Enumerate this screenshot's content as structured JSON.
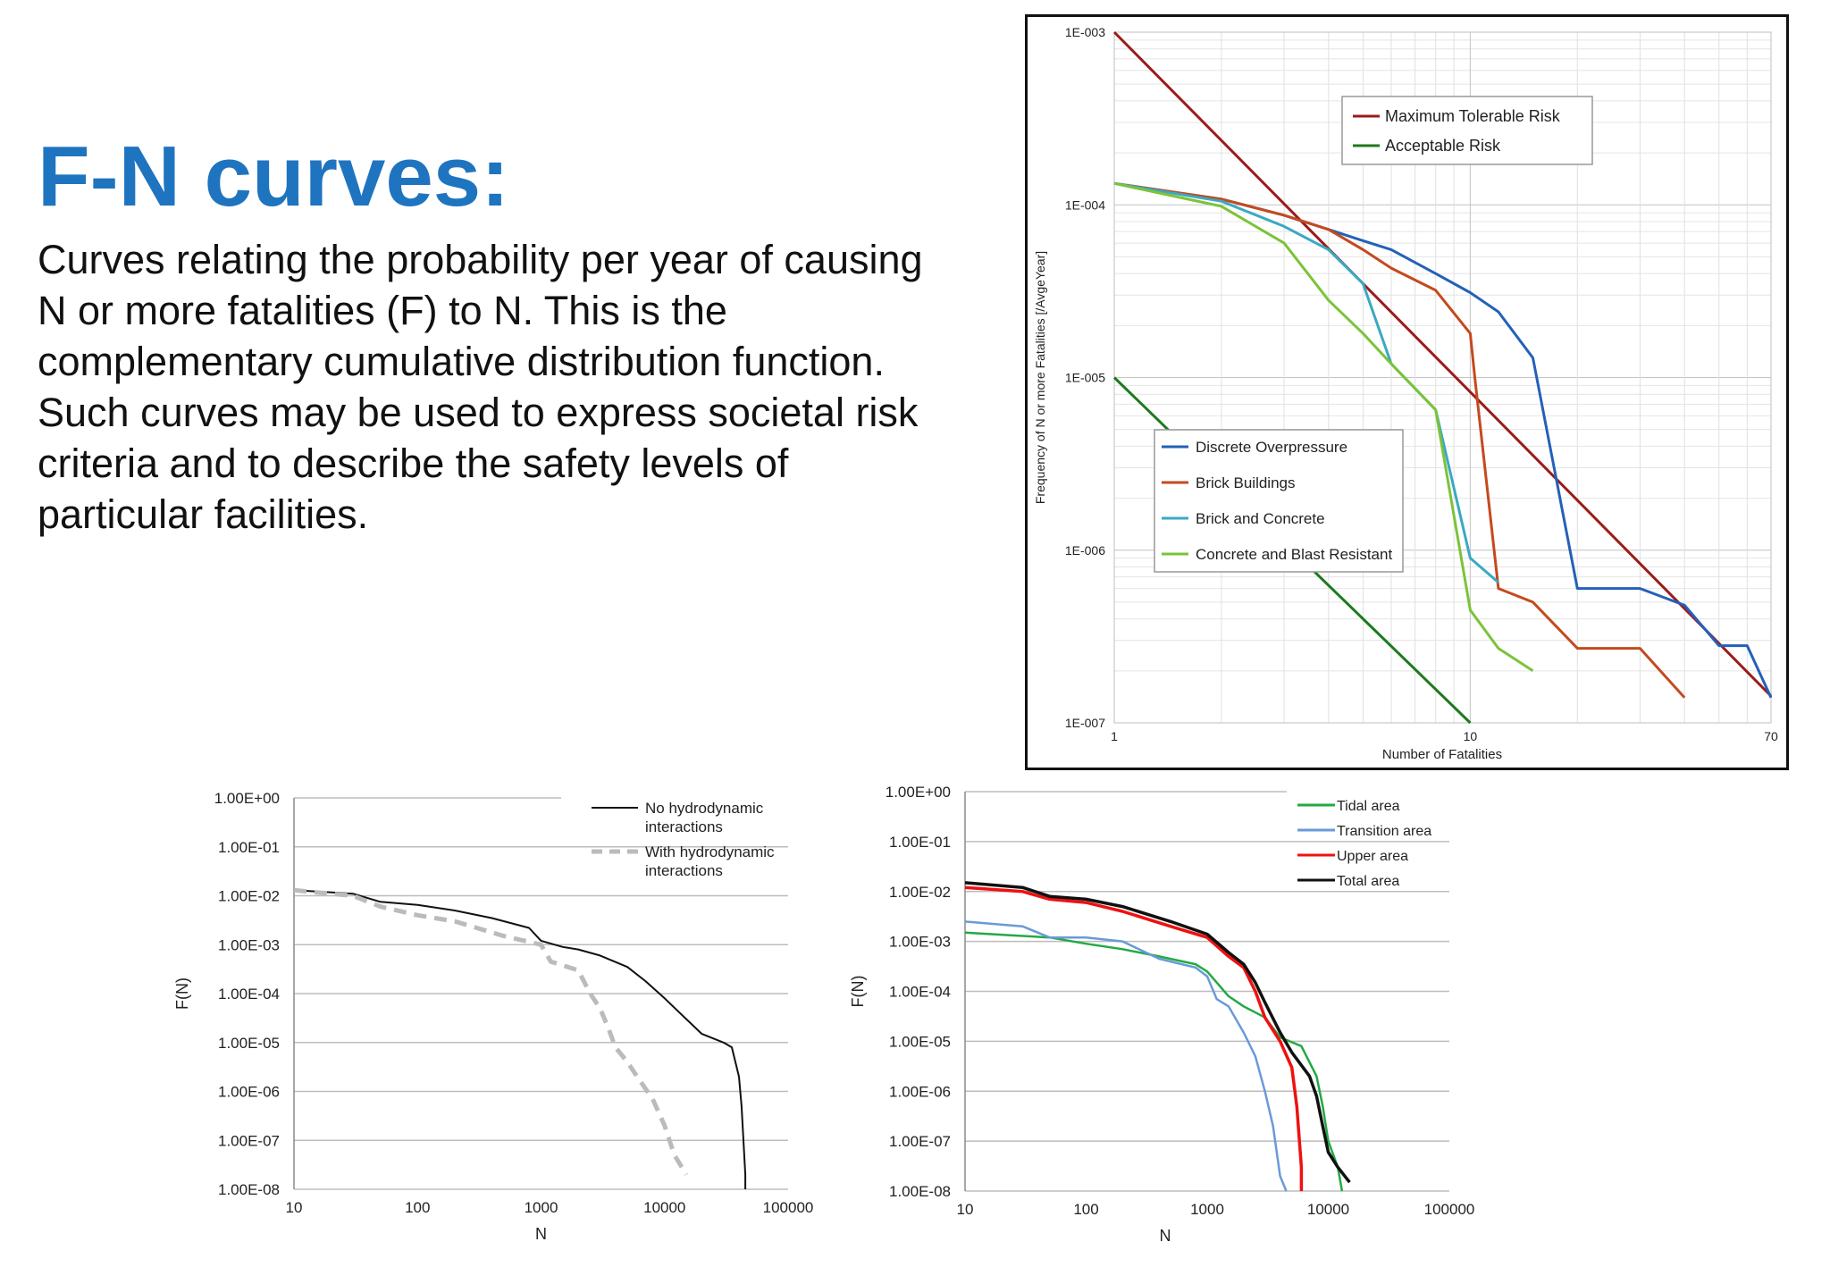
{
  "slide": {
    "title": "F-N curves:",
    "description_lines": [
      "Curves relating the probability per year of causing",
      "N or more fatalities (F) to N. This is the",
      "complementary cumulative distribution function.",
      "Such curves may be used to express societal risk",
      "criteria and to describe the safety levels of",
      "particular facilities."
    ]
  },
  "chart_data": [
    {
      "type": "line",
      "xlabel": "Number of Fatalities",
      "ylabel": "Frequency of N or more Fatalities [/AvgeYear]",
      "x_scale": "log",
      "y_scale": "log",
      "xlim": [
        1,
        70
      ],
      "ylim": [
        1e-07,
        0.001
      ],
      "x_ticks": [
        {
          "v": 1,
          "label": "1"
        },
        {
          "v": 10,
          "label": "10"
        },
        {
          "v": 70,
          "label": "70"
        }
      ],
      "y_ticks": [
        {
          "v": 0.001,
          "label": "1E-003"
        },
        {
          "v": 0.0001,
          "label": "1E-004"
        },
        {
          "v": 1e-05,
          "label": "1E-005"
        },
        {
          "v": 1e-06,
          "label": "1E-006"
        },
        {
          "v": 1e-07,
          "label": "1E-007"
        }
      ],
      "grid": true,
      "legends": [
        {
          "placement": "top-right",
          "entries": [
            "Maximum Tolerable Risk",
            "Acceptable Risk"
          ]
        },
        {
          "placement": "center-left",
          "entries": [
            "Discrete Overpressure",
            "Brick Buildings",
            "Brick and Concrete",
            "Concrete and Blast Resistant"
          ]
        }
      ],
      "series": [
        {
          "name": "Maximum Tolerable Risk",
          "color": "#9b1b1b",
          "x": [
            1,
            70
          ],
          "y": [
            0.001,
            1.43e-07
          ]
        },
        {
          "name": "Acceptable Risk",
          "color": "#1d7a1d",
          "x": [
            1,
            10
          ],
          "y": [
            1e-05,
            1e-07
          ]
        },
        {
          "name": "Discrete Overpressure",
          "color": "#2460b8",
          "x": [
            1,
            2,
            3,
            4,
            5,
            6,
            8,
            10,
            12,
            15,
            20,
            25,
            30,
            40,
            50,
            60,
            70
          ],
          "y": [
            0.000133,
            0.000108,
            8.7e-05,
            7.2e-05,
            6.2e-05,
            5.5e-05,
            4e-05,
            3.1e-05,
            2.4e-05,
            1.3e-05,
            6e-07,
            6e-07,
            6e-07,
            4.8e-07,
            2.8e-07,
            2.8e-07,
            1.4e-07
          ]
        },
        {
          "name": "Brick Buildings",
          "color": "#c44a1e",
          "x": [
            1,
            2,
            3,
            4,
            5,
            6,
            8,
            10,
            10.3,
            12,
            15,
            20,
            25,
            30,
            40
          ],
          "y": [
            0.000133,
            0.000108,
            8.7e-05,
            7.2e-05,
            5.5e-05,
            4.3e-05,
            3.2e-05,
            1.8e-05,
            1e-05,
            6e-07,
            5e-07,
            2.7e-07,
            2.7e-07,
            2.7e-07,
            1.4e-07
          ]
        },
        {
          "name": "Brick and Concrete",
          "color": "#3aa9c3",
          "x": [
            1,
            2,
            3,
            4,
            5,
            6,
            8,
            10,
            12
          ],
          "y": [
            0.000133,
            0.000105,
            7.5e-05,
            5.5e-05,
            3.5e-05,
            1.2e-05,
            6.5e-06,
            9e-07,
            6.5e-07
          ]
        },
        {
          "name": "Concrete and Blast Resistant",
          "color": "#7cc33a",
          "x": [
            1,
            2,
            3,
            4,
            5,
            6,
            8,
            10,
            12,
            15
          ],
          "y": [
            0.000133,
            9.8e-05,
            6e-05,
            2.8e-05,
            1.8e-05,
            1.2e-05,
            6.5e-06,
            4.5e-07,
            2.7e-07,
            2e-07
          ]
        }
      ]
    },
    {
      "type": "line",
      "xlabel": "N",
      "ylabel": "F(N)",
      "x_scale": "log",
      "y_scale": "log",
      "xlim": [
        10,
        100000
      ],
      "ylim": [
        1e-08,
        1
      ],
      "x_ticks": [
        {
          "v": 10,
          "label": "10"
        },
        {
          "v": 100,
          "label": "100"
        },
        {
          "v": 1000,
          "label": "1000"
        },
        {
          "v": 10000,
          "label": "10000"
        },
        {
          "v": 100000,
          "label": "100000"
        }
      ],
      "y_ticks": [
        {
          "v": 1,
          "label": "1.00E+00"
        },
        {
          "v": 0.1,
          "label": "1.00E-01"
        },
        {
          "v": 0.01,
          "label": "1.00E-02"
        },
        {
          "v": 0.001,
          "label": "1.00E-03"
        },
        {
          "v": 0.0001,
          "label": "1.00E-04"
        },
        {
          "v": 1e-05,
          "label": "1.00E-05"
        },
        {
          "v": 1e-06,
          "label": "1.00E-06"
        },
        {
          "v": 1e-07,
          "label": "1.00E-07"
        },
        {
          "v": 1e-08,
          "label": "1.00E-08"
        }
      ],
      "grid": "horizontal",
      "legend": {
        "placement": "top-right",
        "entries": [
          "No hydrodynamic interactions",
          "With hydrodynamic interactions"
        ]
      },
      "series": [
        {
          "name": "No hydrodynamic interactions",
          "color": "#111111",
          "dash": "solid",
          "x": [
            10,
            30,
            50,
            100,
            200,
            400,
            800,
            1000,
            1500,
            2000,
            3000,
            5000,
            7000,
            10000,
            15000,
            20000,
            30000,
            35000,
            40000,
            42000,
            45000,
            45000
          ],
          "y": [
            0.013,
            0.011,
            0.0075,
            0.0065,
            0.005,
            0.0035,
            0.0022,
            0.0012,
            0.0009,
            0.0008,
            0.0006,
            0.00035,
            0.00018,
            8e-05,
            3e-05,
            1.5e-05,
            1e-05,
            8e-06,
            2e-06,
            5e-07,
            2e-08,
            1e-08
          ]
        },
        {
          "name": "With hydrodynamic interactions",
          "color": "#bbbbbb",
          "dash": "dashed",
          "x": [
            10,
            30,
            50,
            100,
            200,
            500,
            1000,
            1200,
            2000,
            2500,
            3000,
            3500,
            4000,
            5000,
            6000,
            8000,
            10000,
            12000,
            15000
          ],
          "y": [
            0.013,
            0.01,
            0.006,
            0.004,
            0.003,
            0.0015,
            0.001,
            0.00045,
            0.0003,
            0.0001,
            5e-05,
            2e-05,
            8e-06,
            4e-06,
            2e-06,
            7e-07,
            2e-07,
            5e-08,
            2e-08
          ]
        }
      ]
    },
    {
      "type": "line",
      "xlabel": "N",
      "ylabel": "F(N)",
      "x_scale": "log",
      "y_scale": "log",
      "xlim": [
        10,
        100000
      ],
      "ylim": [
        1e-08,
        1
      ],
      "x_ticks": [
        {
          "v": 10,
          "label": "10"
        },
        {
          "v": 100,
          "label": "100"
        },
        {
          "v": 1000,
          "label": "1000"
        },
        {
          "v": 10000,
          "label": "10000"
        },
        {
          "v": 100000,
          "label": "100000"
        }
      ],
      "y_ticks": [
        {
          "v": 1,
          "label": "1.00E+00"
        },
        {
          "v": 0.1,
          "label": "1.00E-01"
        },
        {
          "v": 0.01,
          "label": "1.00E-02"
        },
        {
          "v": 0.001,
          "label": "1.00E-03"
        },
        {
          "v": 0.0001,
          "label": "1.00E-04"
        },
        {
          "v": 1e-05,
          "label": "1.00E-05"
        },
        {
          "v": 1e-06,
          "label": "1.00E-06"
        },
        {
          "v": 1e-07,
          "label": "1.00E-07"
        },
        {
          "v": 1e-08,
          "label": "1.00E-08"
        }
      ],
      "grid": "horizontal",
      "legend": {
        "placement": "top-right",
        "entries": [
          "Tidal area",
          "Transition area",
          "Upper area",
          "Total area"
        ]
      },
      "series": [
        {
          "name": "Tidal area",
          "color": "#22aa44",
          "x": [
            10,
            50,
            100,
            200,
            400,
            800,
            1000,
            1500,
            2000,
            3000,
            4000,
            6000,
            8000,
            9000,
            10000,
            12000,
            13000
          ],
          "y": [
            0.0015,
            0.0012,
            0.0009,
            0.0007,
            0.0005,
            0.00035,
            0.00025,
            8e-05,
            5e-05,
            3e-05,
            1.2e-05,
            8e-06,
            2e-06,
            5e-07,
            1e-07,
            3e-08,
            1e-08
          ]
        },
        {
          "name": "Transition area",
          "color": "#6a9ad8",
          "x": [
            10,
            30,
            50,
            100,
            200,
            400,
            800,
            1000,
            1200,
            1500,
            2000,
            2500,
            3000,
            3500,
            4000,
            4500
          ],
          "y": [
            0.0025,
            0.002,
            0.0012,
            0.0012,
            0.001,
            0.00045,
            0.0003,
            0.0002,
            7e-05,
            5e-05,
            1.5e-05,
            5e-06,
            1e-06,
            2e-07,
            2e-08,
            1e-08
          ]
        },
        {
          "name": "Upper area",
          "color": "#ee1111",
          "x": [
            10,
            30,
            50,
            100,
            200,
            500,
            1000,
            1500,
            2000,
            2500,
            3000,
            4000,
            5000,
            5500,
            6000,
            6000
          ],
          "y": [
            0.012,
            0.01,
            0.007,
            0.006,
            0.004,
            0.002,
            0.0012,
            0.0005,
            0.0003,
            0.0001,
            3e-05,
            1e-05,
            3e-06,
            5e-07,
            3e-08,
            1e-08
          ]
        },
        {
          "name": "Total area",
          "color": "#111111",
          "x": [
            10,
            30,
            50,
            100,
            200,
            500,
            1000,
            1500,
            2000,
            2500,
            3000,
            4000,
            5000,
            7000,
            8000,
            9000,
            10000,
            12000,
            15000
          ],
          "y": [
            0.015,
            0.012,
            0.008,
            0.007,
            0.005,
            0.0025,
            0.0014,
            0.0006,
            0.00035,
            0.00015,
            6e-05,
            1.5e-05,
            6e-06,
            2e-06,
            8e-07,
            2e-07,
            6e-08,
            3e-08,
            1.5e-08
          ]
        }
      ]
    }
  ]
}
